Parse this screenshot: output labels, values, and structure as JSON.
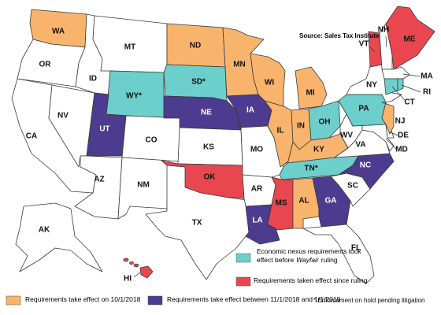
{
  "map": {
    "source": "Source: Sales Tax Institute",
    "states": [
      {
        "label": "WA",
        "fill": "#f8b46c"
      },
      {
        "label": "OR",
        "fill": "#ffffff"
      },
      {
        "label": "CA",
        "fill": "#ffffff"
      },
      {
        "label": "NV",
        "fill": "#ffffff"
      },
      {
        "label": "ID",
        "fill": "#ffffff"
      },
      {
        "label": "MT",
        "fill": "#ffffff"
      },
      {
        "label": "WY*",
        "fill": "#6ccfcb"
      },
      {
        "label": "UT",
        "fill": "#4c3b8e"
      },
      {
        "label": "CO",
        "fill": "#ffffff"
      },
      {
        "label": "AZ",
        "fill": "#ffffff"
      },
      {
        "label": "NM",
        "fill": "#ffffff"
      },
      {
        "label": "ND",
        "fill": "#f8b46c"
      },
      {
        "label": "SD*",
        "fill": "#6ccfcb"
      },
      {
        "label": "NE",
        "fill": "#4c3b8e"
      },
      {
        "label": "KS",
        "fill": "#ffffff"
      },
      {
        "label": "OK",
        "fill": "#e9474f"
      },
      {
        "label": "TX",
        "fill": "#ffffff"
      },
      {
        "label": "MN",
        "fill": "#f8b46c"
      },
      {
        "label": "IA",
        "fill": "#4c3b8e"
      },
      {
        "label": "MO",
        "fill": "#ffffff"
      },
      {
        "label": "AR",
        "fill": "#ffffff"
      },
      {
        "label": "LA",
        "fill": "#4c3b8e"
      },
      {
        "label": "WI",
        "fill": "#f8b46c"
      },
      {
        "label": "MI",
        "fill": "#f8b46c"
      },
      {
        "label": "IL",
        "fill": "#f8b46c"
      },
      {
        "label": "IN",
        "fill": "#f8b46c"
      },
      {
        "label": "OH",
        "fill": "#6ccfcb"
      },
      {
        "label": "KY",
        "fill": "#f8b46c"
      },
      {
        "label": "TN*",
        "fill": "#6ccfcb"
      },
      {
        "label": "MS",
        "fill": "#e9474f"
      },
      {
        "label": "AL",
        "fill": "#f8b46c"
      },
      {
        "label": "GA",
        "fill": "#4c3b8e"
      },
      {
        "label": "FL",
        "fill": "#ffffff"
      },
      {
        "label": "SC",
        "fill": "#ffffff"
      },
      {
        "label": "NC",
        "fill": "#4c3b8e"
      },
      {
        "label": "VA",
        "fill": "#ffffff"
      },
      {
        "label": "WV",
        "fill": "#ffffff"
      },
      {
        "label": "MD",
        "fill": "#ffffff"
      },
      {
        "label": "DE",
        "fill": "#ffffff"
      },
      {
        "label": "PA",
        "fill": "#6ccfcb"
      },
      {
        "label": "NJ",
        "fill": "#f8b46c"
      },
      {
        "label": "NY",
        "fill": "#ffffff"
      },
      {
        "label": "VT",
        "fill": "#e9474f"
      },
      {
        "label": "NH",
        "fill": "#ffffff"
      },
      {
        "label": "ME",
        "fill": "#e9474f"
      },
      {
        "label": "MA",
        "fill": "#ffffff"
      },
      {
        "label": "CT",
        "fill": "#6ccfcb"
      },
      {
        "label": "RI",
        "fill": "#6ccfcb"
      },
      {
        "label": "AK",
        "fill": "#ffffff"
      },
      {
        "label": "HI",
        "fill": "#e9474f"
      }
    ],
    "legend": [
      {
        "color": "#6ccfcb",
        "text": [
          "Economic nexus requirements took",
          "effect before",
          "Wayfair",
          "ruling"
        ]
      },
      {
        "color": "#e9474f",
        "text": [
          "Requirements taken effect since ruling"
        ]
      },
      {
        "color": "#f8b46c",
        "text": [
          "Requirements take effect on 10/1/2018"
        ]
      },
      {
        "color": "#4c3b8e",
        "text": [
          "Requirements take effect between 11/1/2018 and 1/1/2019"
        ]
      }
    ],
    "note": "* Enforcement on hold pending litigation"
  }
}
